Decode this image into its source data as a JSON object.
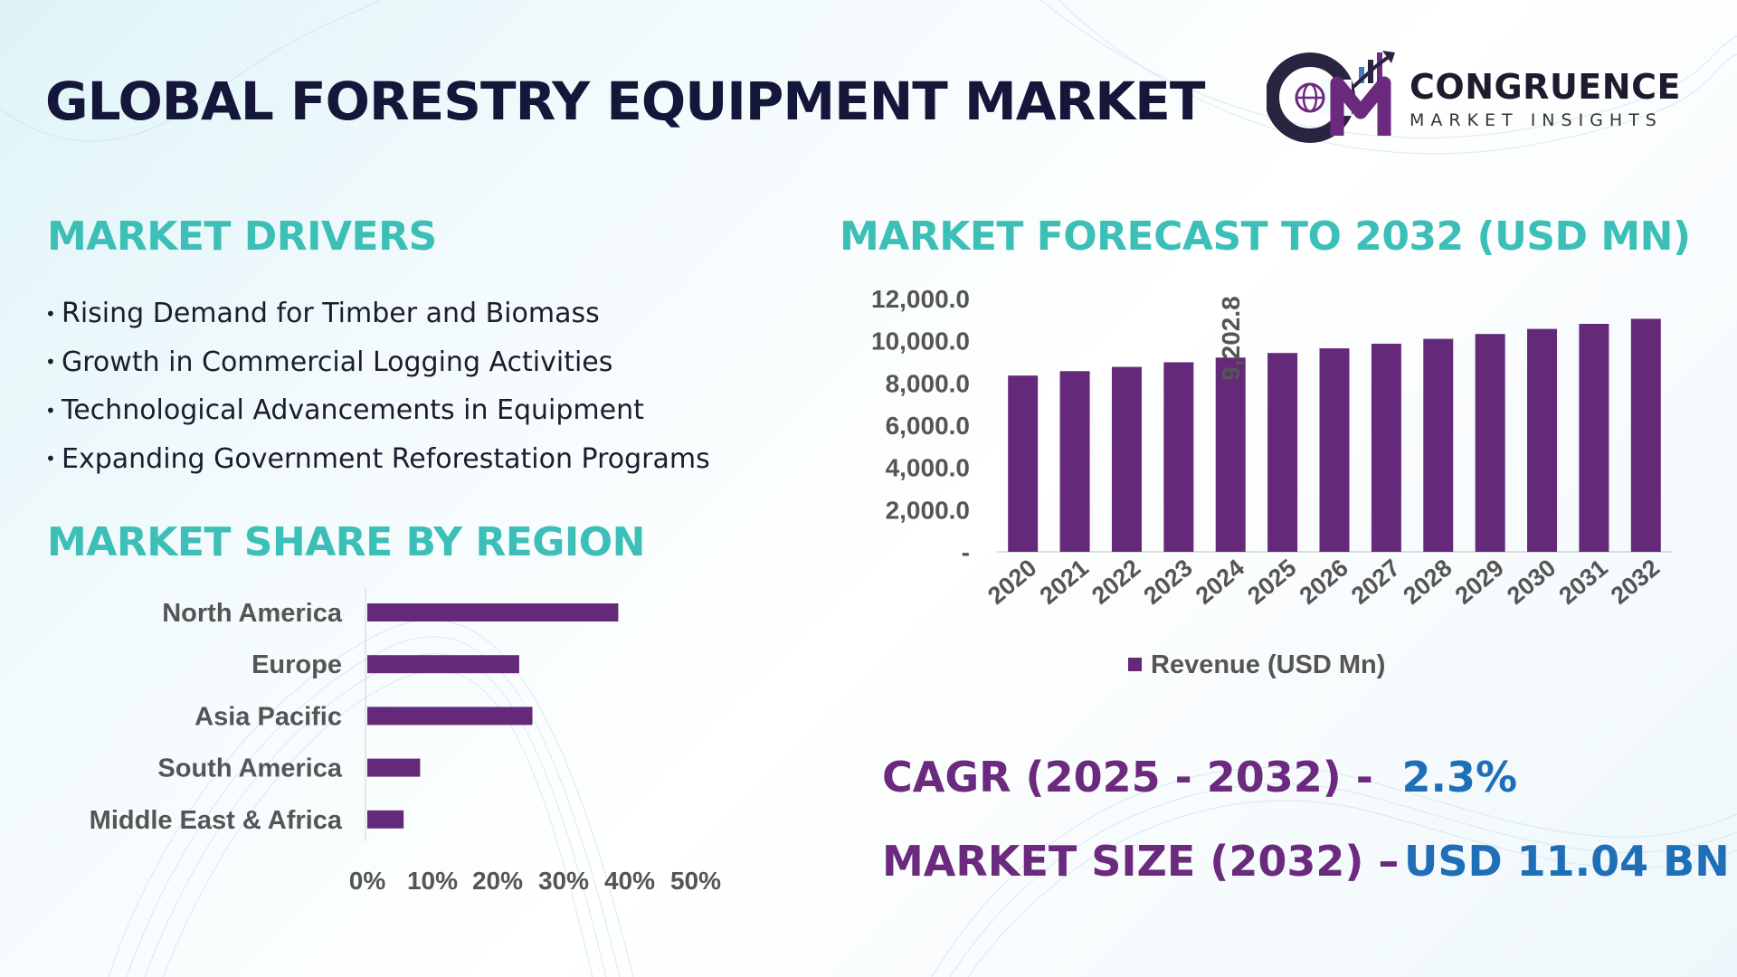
{
  "title": "GLOBAL FORESTRY EQUIPMENT MARKET",
  "brand": {
    "logo_icon": "cm-logo-icon",
    "name": "CONGRUENCE",
    "tagline": "MARKET INSIGHTS",
    "colors": {
      "dark": "#2b2440",
      "purple": "#6b2a7e",
      "blue": "#3f7fc1"
    }
  },
  "drivers": {
    "heading": "MARKET DRIVERS",
    "items": [
      "Rising Demand for Timber and Biomass",
      "Growth in Commercial Logging Activities",
      "Technological Advancements in Equipment",
      "Expanding Government Reforestation Programs"
    ]
  },
  "region": {
    "heading": "MARKET SHARE BY REGION"
  },
  "forecast": {
    "heading": "MARKET FORECAST TO 2032 (USD MN)"
  },
  "stats": {
    "cagr_label": "CAGR (2025 - 2032) -",
    "cagr_value": "2.3%",
    "size_label": "MARKET SIZE (2032) –",
    "size_value": "USD 11.04 BN"
  },
  "colors": {
    "bar": "#65297a",
    "heading": "#3bbfb7",
    "title": "#14163a",
    "value_blue": "#1f6fb8"
  },
  "chart_data": [
    {
      "type": "bar",
      "orientation": "vertical",
      "categories": [
        "2020",
        "2021",
        "2022",
        "2023",
        "2024",
        "2025",
        "2026",
        "2027",
        "2028",
        "2029",
        "2030",
        "2031",
        "2032"
      ],
      "series": [
        {
          "name": "Revenue (USD Mn)",
          "values": [
            8350,
            8560,
            8760,
            8980,
            9202.8,
            9420,
            9640,
            9860,
            10090,
            10320,
            10560,
            10800,
            11040
          ]
        }
      ],
      "y_ticks": [
        "-",
        "2,000.0",
        "4,000.0",
        "6,000.0",
        "8,000.0",
        "10,000.0",
        "12,000.0"
      ],
      "ylim": [
        0,
        12000
      ],
      "data_labels": [
        {
          "category": "2024",
          "text": "9,202.8"
        }
      ],
      "legend": "bottom",
      "grid": false
    },
    {
      "type": "bar",
      "orientation": "horizontal",
      "categories": [
        "North America",
        "Europe",
        "Asia Pacific",
        "South America",
        "Middle East & Africa"
      ],
      "values": [
        38,
        23,
        25,
        8,
        5.5
      ],
      "unit": "%",
      "x_ticks": [
        "0%",
        "10%",
        "20%",
        "30%",
        "40%",
        "50%"
      ],
      "xlim": [
        0,
        50
      ],
      "grid": false
    }
  ]
}
